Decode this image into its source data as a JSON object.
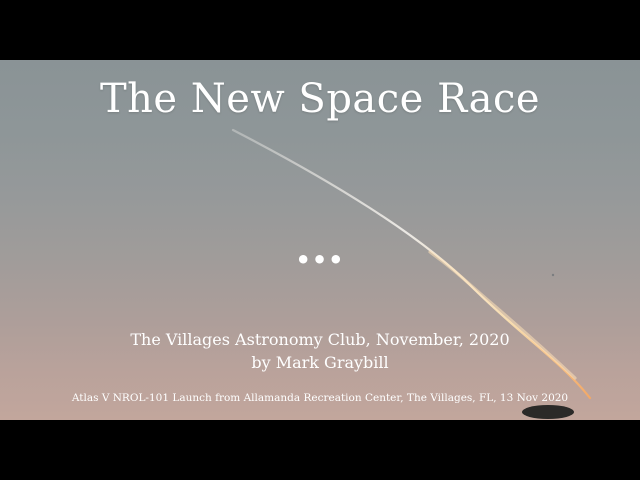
{
  "slide": {
    "title": "The New Space Race",
    "ellipsis": "•••",
    "club_line": "The Villages Astronomy Club, November, 2020",
    "author_line": "by Mark Graybill",
    "caption": "Atlas V NROL-101 Launch from Allamanda Recreation Center, The Villages, FL, 13 Nov 2020"
  },
  "colors": {
    "letterbox": "#000000",
    "sky_top": "#8a9396",
    "sky_bottom": "#c2a69c",
    "text": "#ffffff",
    "trail_upper": "#f2f0ec",
    "trail_lower": "#f6c98a"
  }
}
